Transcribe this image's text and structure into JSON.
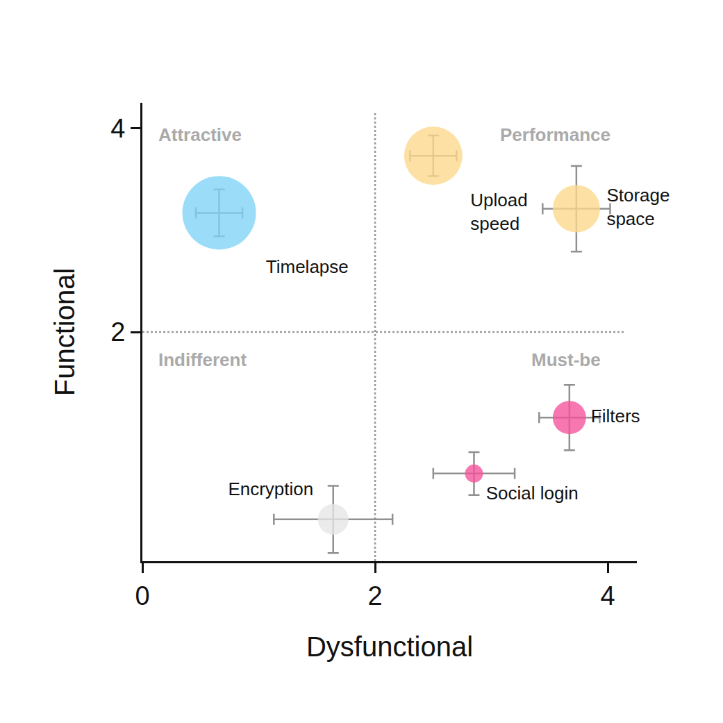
{
  "chart_data": {
    "type": "scatter",
    "marker": "bubble",
    "x_label": "Dysfunctional",
    "y_label": "Functional",
    "xlim": [
      0,
      4.25
    ],
    "ylim": [
      -0.25,
      4.25
    ],
    "xticks": [
      0,
      2,
      4
    ],
    "yticks": [
      2,
      4
    ],
    "grid": false,
    "quadrant_lines": {
      "x": 2,
      "y": 2
    },
    "quadrant_labels": [
      "Attractive",
      "Performance",
      "Indifferent",
      "Must-be"
    ],
    "labels": [
      "Timelapse",
      "Upload speed",
      "Storage space",
      "Filters",
      "Social login",
      "Encryption"
    ],
    "x": [
      0.66,
      2.5,
      3.73,
      3.67,
      2.85,
      1.64
    ],
    "values": [
      3.17,
      3.73,
      3.21,
      1.16,
      0.61,
      0.16
    ],
    "x_error": [
      0.2,
      0.2,
      0.29,
      0.26,
      0.35,
      0.51
    ],
    "y_error": [
      0.23,
      0.2,
      0.42,
      0.32,
      0.21,
      0.33
    ],
    "size": [
      53,
      42,
      34,
      24,
      13,
      22
    ],
    "colors": [
      "#7fd3f7",
      "#fdd88a",
      "#fdd88a",
      "#f5529a",
      "#f5529a",
      "#e6e6e6"
    ]
  }
}
